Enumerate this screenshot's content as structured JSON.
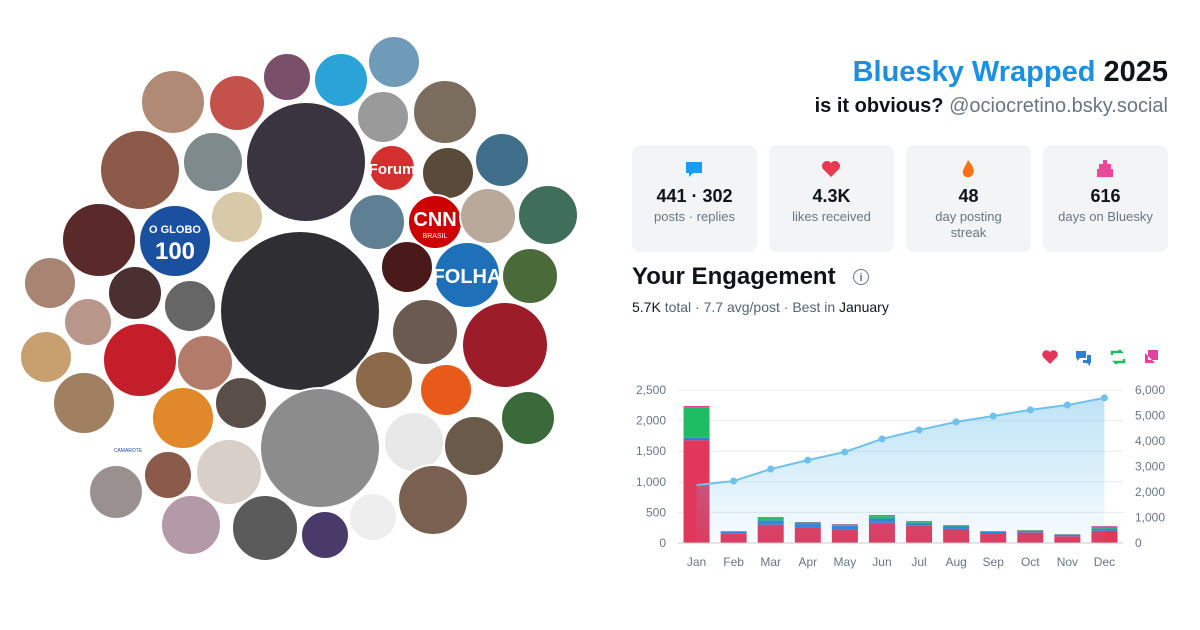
{
  "header": {
    "brand": "Bluesky Wrapped",
    "year": "2025",
    "tagline": "is it obvious?",
    "handle": "@ociocretino.bsky.social"
  },
  "avatar_logos": {
    "forum": "Forum",
    "cnn": "CNN",
    "cnn_sub": "BRASIL",
    "globo": "O GLOBO",
    "globo_sub": "100",
    "folha": "FOLHA",
    "camarote": "CAMAROTE"
  },
  "stats": [
    {
      "value": "441 · 302",
      "label": "posts · replies",
      "color": "#1d9bf0"
    },
    {
      "value": "4.3K",
      "label": "likes received",
      "color": "#e8394f"
    },
    {
      "value": "48",
      "label": "day posting streak",
      "color": "#f97316"
    },
    {
      "value": "616",
      "label": "days on Bluesky",
      "color": "#ec4899"
    }
  ],
  "engagement": {
    "title": "Your Engagement",
    "total": "5.7K",
    "middle": "total · 7.7 avg/post · Best in",
    "best": "January"
  },
  "chart_data": {
    "type": "bar",
    "categories": [
      "Jan",
      "Feb",
      "Mar",
      "Apr",
      "May",
      "Jun",
      "Jul",
      "Aug",
      "Sep",
      "Oct",
      "Nov",
      "Dec"
    ],
    "series": [
      {
        "color": "#e2365b",
        "values": [
          1680,
          150,
          300,
          260,
          220,
          330,
          280,
          230,
          155,
          170,
          110,
          200
        ]
      },
      {
        "color": "#2f7fd8",
        "values": [
          40,
          30,
          70,
          50,
          60,
          70,
          50,
          40,
          25,
          25,
          25,
          35
        ]
      },
      {
        "color": "#1ebc63",
        "values": [
          500,
          10,
          40,
          25,
          20,
          40,
          20,
          18,
          10,
          12,
          8,
          30
        ]
      },
      {
        "color": "#e040a0",
        "values": [
          20,
          5,
          15,
          8,
          10,
          17,
          10,
          6,
          6,
          5,
          4,
          13
        ]
      },
      {
        "type": "line",
        "axis": "y2",
        "color": "#6ec1ea",
        "values": [
          2270,
          2430,
          2900,
          3250,
          3570,
          4080,
          4430,
          4750,
          4980,
          5220,
          5410,
          5690
        ]
      }
    ],
    "ylim": [
      0,
      2500
    ],
    "yticks": [
      0,
      500,
      {
        "value": 1000,
        "label": "1,000"
      },
      {
        "value": 1500,
        "label": "1,500"
      },
      {
        "value": 2000,
        "label": "2,000"
      },
      {
        "value": 2500,
        "label": "2,500"
      }
    ],
    "y2lim": [
      0,
      6000
    ],
    "y2ticks": [
      0,
      {
        "value": 1000,
        "label": "1,000"
      },
      {
        "value": 2000,
        "label": "2,000"
      },
      {
        "value": 3000,
        "label": "3,000"
      },
      {
        "value": 4000,
        "label": "4,000"
      },
      {
        "value": 5000,
        "label": "5,000"
      },
      {
        "value": 6000,
        "label": "6,000"
      }
    ],
    "grid": true
  }
}
